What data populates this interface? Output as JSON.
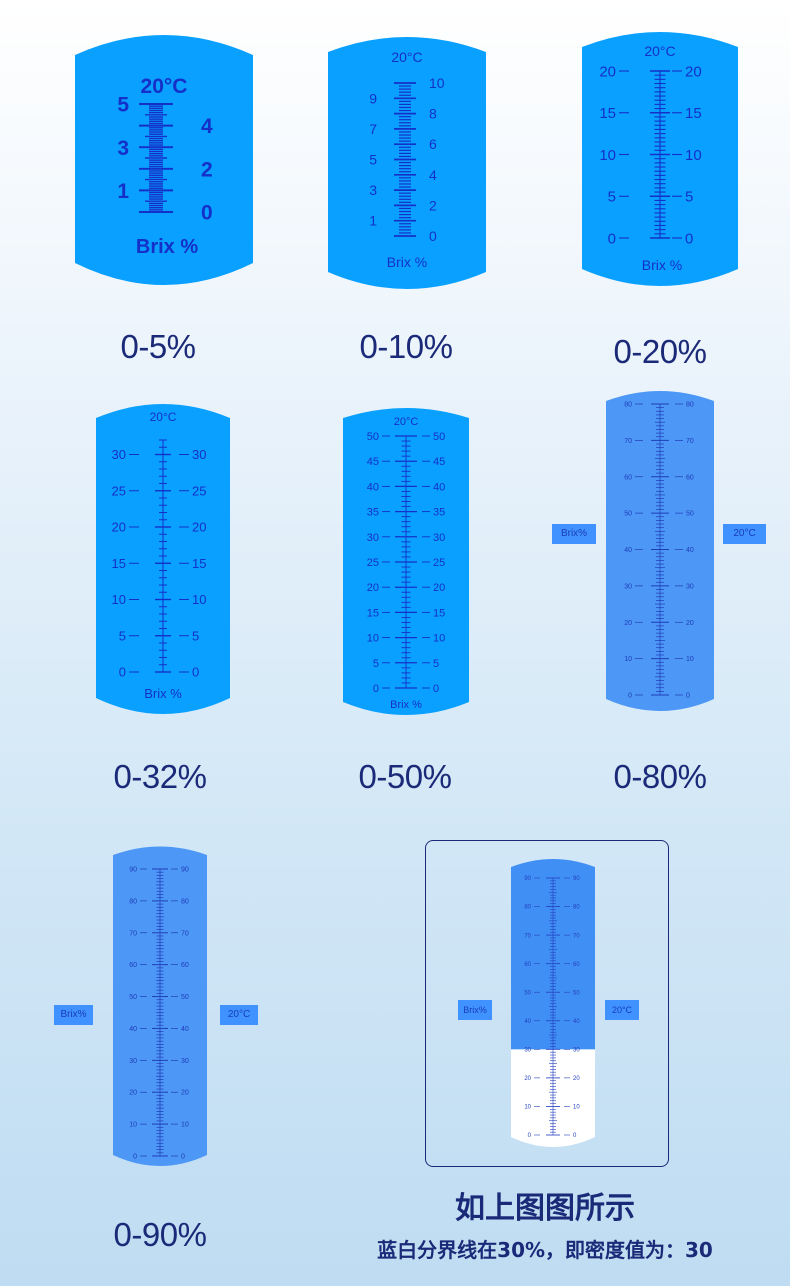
{
  "colors": {
    "body_dark": "#0aa0ff",
    "body_mid": "#3aa0ff",
    "body_light": "#4d97f6",
    "scale": "#1530c8",
    "caption": "#1b2a78",
    "white_zone": "#ffffff"
  },
  "unit_label": "Brix %",
  "temp_label": "20°C",
  "panels": [
    {
      "id": "p5",
      "caption": "0-5%",
      "scale": {
        "max": 5,
        "minor": 0.1,
        "major": 1,
        "left_labels": [
          1,
          3,
          5
        ],
        "right_labels": [
          0,
          2,
          4
        ]
      },
      "unit_label": "Brix %",
      "temp_label": "20°C"
    },
    {
      "id": "p10",
      "caption": "0-10%",
      "scale": {
        "max": 10,
        "minor": 0.2,
        "major": 1,
        "left_labels": [
          1,
          3,
          5,
          7,
          9
        ],
        "right_labels": [
          0,
          2,
          4,
          6,
          8,
          10
        ]
      },
      "unit_label": "Brix %",
      "temp_label": "20°C"
    },
    {
      "id": "p20",
      "caption": "0-20%",
      "scale": {
        "max": 20,
        "minor": 0.5,
        "major": 5,
        "left_labels": [
          0,
          5,
          10,
          15,
          20
        ],
        "right_labels": [
          0,
          5,
          10,
          15,
          20
        ]
      },
      "unit_label": "Brix %",
      "temp_label": "20°C"
    },
    {
      "id": "p32",
      "caption": "0-32%",
      "scale": {
        "max": 32,
        "minor": 1,
        "major": 5,
        "left_labels": [
          0,
          5,
          10,
          15,
          20,
          25,
          30
        ],
        "right_labels": [
          0,
          5,
          10,
          15,
          20,
          25,
          30
        ]
      },
      "unit_label": "Brix %",
      "temp_label": "20°C"
    },
    {
      "id": "p50",
      "caption": "0-50%",
      "scale": {
        "max": 50,
        "minor": 1,
        "major": 5,
        "left_labels": [
          0,
          5,
          10,
          15,
          20,
          25,
          30,
          35,
          40,
          45,
          50
        ],
        "right_labels": [
          0,
          5,
          10,
          15,
          20,
          25,
          30,
          35,
          40,
          45,
          50
        ]
      },
      "unit_label": "Brix %",
      "temp_label": "20°C"
    },
    {
      "id": "p80",
      "caption": "0-80%",
      "scale": {
        "max": 80,
        "minor": 1,
        "major": 10,
        "left_labels": [
          0,
          10,
          20,
          30,
          40,
          50,
          60,
          70,
          80
        ],
        "right_labels": [
          0,
          10,
          20,
          30,
          40,
          50,
          60,
          70,
          80
        ]
      },
      "side_left": "Brix%",
      "side_right": "20°C"
    },
    {
      "id": "p90",
      "caption": "0-90%",
      "scale": {
        "max": 90,
        "minor": 1,
        "major": 10,
        "left_labels": [
          0,
          10,
          20,
          30,
          40,
          50,
          60,
          70,
          80,
          90
        ],
        "right_labels": [
          0,
          10,
          20,
          30,
          40,
          50,
          60,
          70,
          80,
          90
        ]
      },
      "side_left": "Brix%",
      "side_right": "20°C"
    },
    {
      "id": "pex",
      "scale": {
        "max": 90,
        "minor": 1,
        "major": 10,
        "left_labels": [
          0,
          10,
          20,
          30,
          40,
          50,
          60,
          70,
          80,
          90
        ],
        "right_labels": [
          0,
          10,
          20,
          30,
          40,
          50,
          60,
          70,
          80,
          90
        ],
        "boundary": 30
      },
      "side_left": "Brix%",
      "side_right": "20°C"
    }
  ],
  "example": {
    "title": "如上图图所示",
    "subtitle": "蓝白分界线在30%，即密度值为：30",
    "boundary_value": 30
  }
}
